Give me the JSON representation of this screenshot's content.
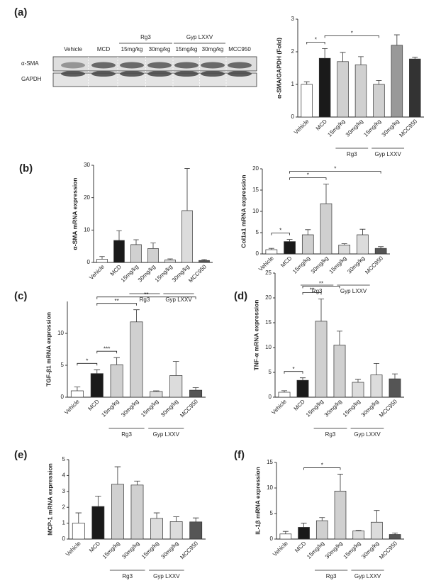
{
  "blot": {
    "lanes": [
      "Vehicle",
      "MCD",
      "15mg/kg",
      "30mg/kg",
      "15mg/kg",
      "30mg/kg",
      "MCC950"
    ],
    "groups": [
      {
        "label": "Rg3",
        "from": 2,
        "to": 3
      },
      {
        "label": "Gyp LXXV",
        "from": 4,
        "to": 5
      }
    ],
    "rows": [
      "α-SMA",
      "GAPDH"
    ]
  },
  "chart_data": [
    {
      "type": "bar",
      "panel": "(a)",
      "ylabel": "α-SMA/GAPDH (Fold)",
      "categories": [
        "Vehicle",
        "MCD",
        "15mg/kg",
        "30mg/kg",
        "15mg/kg",
        "30mg/kg",
        "MCC950"
      ],
      "values": [
        1.0,
        1.8,
        1.7,
        1.6,
        1.0,
        2.2,
        1.78
      ],
      "errors": [
        0.08,
        0.3,
        0.28,
        0.25,
        0.12,
        0.32,
        0.05
      ],
      "colors": [
        "#ffffff",
        "#1a1a1a",
        "#d0d0d0",
        "#d0d0d0",
        "#d0d0d0",
        "#999999",
        "#333333"
      ],
      "ylim": [
        0,
        3
      ],
      "yticks": [
        0,
        1,
        2,
        3
      ],
      "groups": [
        {
          "label": "Rg3",
          "from": 2,
          "to": 3
        },
        {
          "label": "Gyp LXXV",
          "from": 4,
          "to": 5
        }
      ],
      "significance": [
        {
          "from": 0,
          "to": 1,
          "label": "*"
        },
        {
          "from": 1,
          "to": 4,
          "label": "*"
        }
      ]
    },
    {
      "type": "bar",
      "panel": "(b)",
      "ylabel": "α-SMA mRNA expression",
      "categories": [
        "Vehicle",
        "MCD",
        "15mg/kg",
        "30mg/kg",
        "15mg/kg",
        "30mg/kg",
        "MCC950"
      ],
      "values": [
        1.0,
        6.8,
        5.5,
        4.3,
        0.8,
        16,
        0.6
      ],
      "errors": [
        0.8,
        3,
        1.5,
        1.7,
        0.3,
        13,
        0.3
      ],
      "colors": [
        "#ffffff",
        "#1a1a1a",
        "#d0d0d0",
        "#d0d0d0",
        "#dcdcdc",
        "#dcdcdc",
        "#555555"
      ],
      "ylim": [
        0,
        30
      ],
      "yticks": [
        0,
        10,
        20,
        30
      ],
      "groups": [
        {
          "label": "Rg3",
          "from": 2,
          "to": 3
        },
        {
          "label": "Gyp LXXV",
          "from": 4,
          "to": 5
        }
      ],
      "significance": []
    },
    {
      "type": "bar",
      "ylabel": "Col1a1 mRNA expression",
      "categories": [
        "Vehicle",
        "MCD",
        "15mg/kg",
        "30mg/kg",
        "15mg/kg",
        "30mg/kg",
        "MCC950"
      ],
      "values": [
        1.0,
        2.9,
        4.5,
        11.8,
        2.1,
        4.5,
        1.3
      ],
      "errors": [
        0.3,
        0.5,
        1.2,
        4.6,
        0.3,
        1.3,
        0.4
      ],
      "colors": [
        "#ffffff",
        "#1a1a1a",
        "#d0d0d0",
        "#d0d0d0",
        "#dcdcdc",
        "#dcdcdc",
        "#555555"
      ],
      "ylim": [
        0,
        20
      ],
      "yticks": [
        0,
        5,
        10,
        15,
        20
      ],
      "groups": [
        {
          "label": "Rg3",
          "from": 2,
          "to": 3
        },
        {
          "label": "Gyp LXXV",
          "from": 4,
          "to": 5
        }
      ],
      "significance": [
        {
          "from": 0,
          "to": 1,
          "label": "*"
        },
        {
          "from": 1,
          "to": 3,
          "label": "*"
        },
        {
          "from": 1,
          "to": 6,
          "label": "*"
        }
      ]
    },
    {
      "type": "bar",
      "panel": "(c)",
      "ylabel": "TGF-β1 mRNA expression",
      "categories": [
        "Vehicle",
        "MCD",
        "15mg/kg",
        "30mg/kg",
        "15mg/kg",
        "30mg/kg",
        "MCC950"
      ],
      "values": [
        1.0,
        3.7,
        5.1,
        11.8,
        0.9,
        3.4,
        1.1
      ],
      "errors": [
        0.6,
        0.6,
        1.1,
        1.9,
        0.1,
        2.2,
        0.4
      ],
      "colors": [
        "#ffffff",
        "#1a1a1a",
        "#d0d0d0",
        "#d0d0d0",
        "#dcdcdc",
        "#dcdcdc",
        "#555555"
      ],
      "ylim": [
        0,
        15
      ],
      "yticks": [
        0,
        5,
        10
      ],
      "groups": [
        {
          "label": "Rg3",
          "from": 2,
          "to": 3
        },
        {
          "label": "Gyp LXXV",
          "from": 4,
          "to": 5
        }
      ],
      "significance": [
        {
          "from": 0,
          "to": 1,
          "label": "*"
        },
        {
          "from": 1,
          "to": 2,
          "label": "***"
        },
        {
          "from": 1,
          "to": 3,
          "label": "**"
        },
        {
          "from": 1,
          "to": 6,
          "label": "**"
        }
      ]
    },
    {
      "type": "bar",
      "panel": "(d)",
      "ylabel": "TNF-α mRNA expression",
      "categories": [
        "Vehicle",
        "MCD",
        "15mg/kg",
        "30mg/kg",
        "15mg/kg",
        "30mg/kg",
        "MCC950"
      ],
      "values": [
        1.0,
        3.4,
        15.3,
        10.5,
        3.0,
        4.5,
        3.7
      ],
      "errors": [
        0.3,
        0.5,
        4.5,
        2.8,
        0.6,
        2.3,
        1.0
      ],
      "colors": [
        "#ffffff",
        "#1a1a1a",
        "#d0d0d0",
        "#d0d0d0",
        "#dcdcdc",
        "#dcdcdc",
        "#555555"
      ],
      "ylim": [
        0,
        25
      ],
      "yticks": [
        0,
        5,
        10,
        15,
        20,
        25
      ],
      "groups": [
        {
          "label": "Rg3",
          "from": 2,
          "to": 3
        },
        {
          "label": "Gyp LXXV",
          "from": 4,
          "to": 5
        }
      ],
      "significance": [
        {
          "from": 0,
          "to": 1,
          "label": "*"
        },
        {
          "from": 1,
          "to": 2,
          "label": "**"
        },
        {
          "from": 1,
          "to": 3,
          "label": "**"
        }
      ]
    },
    {
      "type": "bar",
      "panel": "(e)",
      "ylabel": "MCP-1 mRNA expression",
      "categories": [
        "Vehicle",
        "MCD",
        "15mg/kg",
        "30mg/kg",
        "15mg/kg",
        "30mg/kg",
        "MCC950"
      ],
      "values": [
        1.0,
        2.05,
        3.45,
        3.4,
        1.3,
        1.1,
        1.08
      ],
      "errors": [
        0.65,
        0.65,
        1.1,
        0.25,
        0.35,
        0.3,
        0.25
      ],
      "colors": [
        "#ffffff",
        "#1a1a1a",
        "#d0d0d0",
        "#d0d0d0",
        "#dcdcdc",
        "#dcdcdc",
        "#555555"
      ],
      "ylim": [
        0,
        5
      ],
      "yticks": [
        0,
        1,
        2,
        3,
        4,
        5
      ],
      "groups": [
        {
          "label": "Rg3",
          "from": 2,
          "to": 3
        },
        {
          "label": "Gyp LXXV",
          "from": 4,
          "to": 5
        }
      ],
      "significance": []
    },
    {
      "type": "bar",
      "panel": "(f)",
      "ylabel": "IL-1β mRNA expression",
      "categories": [
        "Vehicle",
        "MCD",
        "15mg/kg",
        "30mg/kg",
        "15mg/kg",
        "30mg/kg",
        "MCC950"
      ],
      "values": [
        1.0,
        2.3,
        3.6,
        9.4,
        1.6,
        3.3,
        0.9
      ],
      "errors": [
        0.5,
        0.8,
        0.6,
        3.3,
        0.1,
        2.3,
        0.3
      ],
      "colors": [
        "#ffffff",
        "#1a1a1a",
        "#d0d0d0",
        "#d0d0d0",
        "#dcdcdc",
        "#dcdcdc",
        "#555555"
      ],
      "ylim": [
        0,
        15
      ],
      "yticks": [
        0,
        5,
        10,
        15
      ],
      "groups": [
        {
          "label": "Rg3",
          "from": 2,
          "to": 3
        },
        {
          "label": "Gyp LXXV",
          "from": 4,
          "to": 5
        }
      ],
      "significance": [
        {
          "from": 1,
          "to": 3,
          "label": "*"
        }
      ]
    }
  ]
}
